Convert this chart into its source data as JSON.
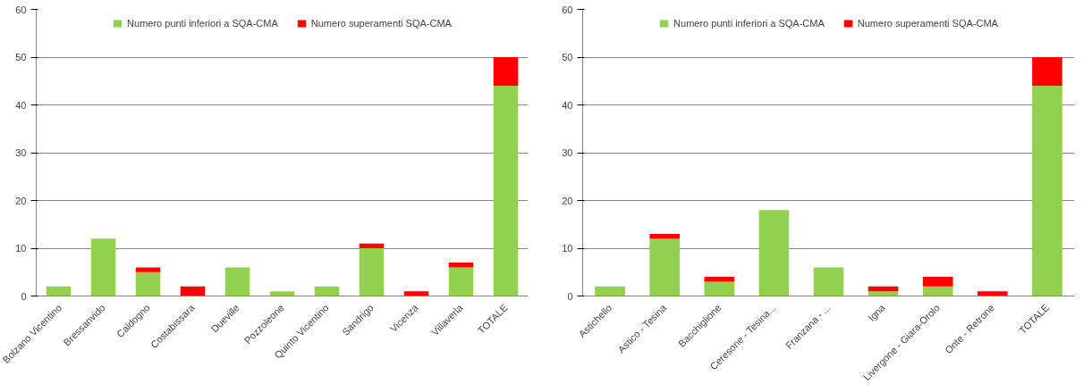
{
  "chart_data": [
    {
      "type": "bar",
      "stacked": true,
      "categories": [
        "Bolzano Vicentino",
        "Bressanvido",
        "Caldogno",
        "Costabissara",
        "Dueville",
        "Pozzoleone",
        "Quinto Vicentino",
        "Sandrigo",
        "Vicenza",
        "Villaverla",
        "TOTALE"
      ],
      "series": [
        {
          "name": "Numero punti inferiori a SQA-CMA",
          "color": "#92d050",
          "values": [
            2,
            12,
            5,
            0,
            6,
            1,
            2,
            10,
            0,
            6,
            44
          ]
        },
        {
          "name": "Numero superamenti SQA-CMA",
          "color": "#ff0000",
          "values": [
            0,
            0,
            1,
            2,
            0,
            0,
            0,
            1,
            1,
            1,
            6
          ]
        }
      ],
      "ylim": [
        0,
        60
      ],
      "yticks": [
        0,
        10,
        20,
        30,
        40,
        50,
        60
      ],
      "grid": "y",
      "legend": "top"
    },
    {
      "type": "bar",
      "stacked": true,
      "categories": [
        "Astichello",
        "Astico - Tesina",
        "Bacchiglione",
        "Ceresone - Tesina...",
        "Franzana - ...",
        "Igna",
        "Livergone - Giara-Orolo",
        "Onte - Retrone",
        "TOTALE"
      ],
      "series": [
        {
          "name": "Numero punti inferiori a SQA-CMA",
          "color": "#92d050",
          "values": [
            2,
            12,
            3,
            18,
            6,
            1,
            2,
            0,
            44
          ]
        },
        {
          "name": "Numero superamenti SQA-CMA",
          "color": "#ff0000",
          "values": [
            0,
            1,
            1,
            0,
            0,
            1,
            2,
            1,
            6
          ]
        }
      ],
      "ylim": [
        0,
        60
      ],
      "yticks": [
        0,
        10,
        20,
        30,
        40,
        50,
        60
      ],
      "grid": "y",
      "legend": "top"
    }
  ]
}
